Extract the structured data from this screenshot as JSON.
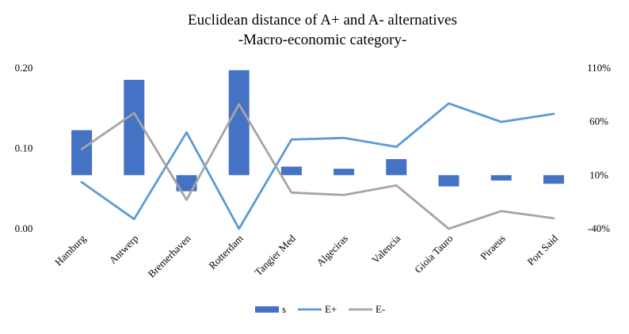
{
  "chart_data": {
    "type": "bar",
    "title": "Euclidean distance of A+ and A- alternatives",
    "subtitle": "-Macro-economic category-",
    "categories": [
      "Hamburg",
      "Antwerp",
      "Bremerhaven",
      "Rotterdam",
      "Tangier Med",
      "Algeciras",
      "Valencia",
      "Gioia Tauro",
      "Piraeus",
      "Port Said"
    ],
    "left_axis": {
      "ticks": [
        "0.00",
        "0.10",
        "0.20"
      ],
      "ylim": [
        0,
        0.2
      ]
    },
    "right_axis": {
      "ticks": [
        "-40%",
        "10%",
        "60%",
        "110%"
      ],
      "ylim": [
        -40,
        110
      ],
      "unit": "%"
    },
    "bar_baseline_percent": 10,
    "series": [
      {
        "name": "s",
        "kind": "bar",
        "axis": "right",
        "color": "#4472C4",
        "values": [
          52,
          99,
          -5,
          108,
          18,
          16,
          25,
          -0.5,
          5,
          2
        ]
      },
      {
        "name": "E+",
        "kind": "line",
        "axis": "left",
        "color": "#5B9BD5",
        "values": [
          0.058,
          0.012,
          0.12,
          0.0,
          0.111,
          0.113,
          0.102,
          0.156,
          0.133,
          0.143
        ]
      },
      {
        "name": "E-",
        "kind": "line",
        "axis": "left",
        "color": "#A5A5A5",
        "values": [
          0.099,
          0.144,
          0.036,
          0.155,
          0.045,
          0.042,
          0.054,
          0.0,
          0.022,
          0.013
        ]
      }
    ],
    "grid": false,
    "legend_position": "bottom"
  }
}
